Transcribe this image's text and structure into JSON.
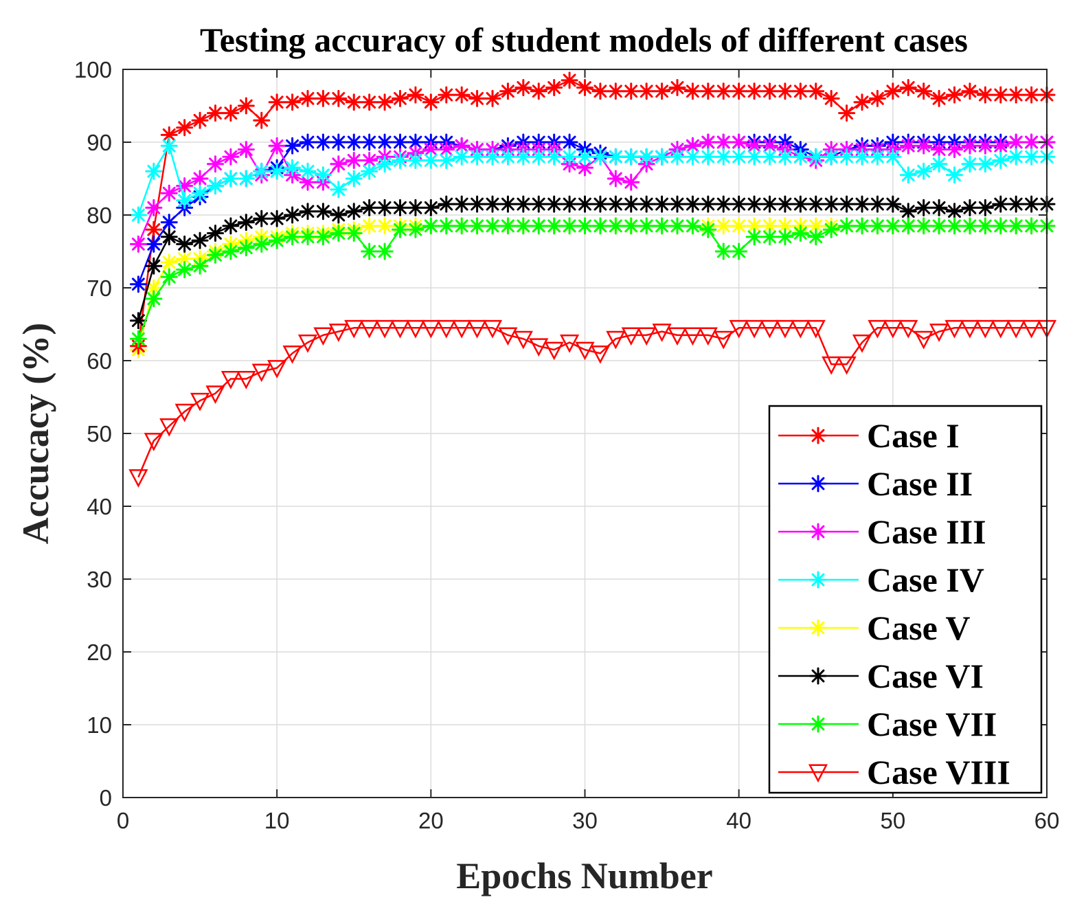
{
  "chart_data": {
    "type": "line",
    "title": "Testing accuracy of student models of different cases",
    "xlabel": "Epochs Number",
    "ylabel": "Accucacy (%)",
    "xlim": [
      0,
      60
    ],
    "ylim": [
      0,
      100
    ],
    "xticks": [
      0,
      10,
      20,
      30,
      40,
      50,
      60
    ],
    "yticks": [
      0,
      10,
      20,
      30,
      40,
      50,
      60,
      70,
      80,
      90,
      100
    ],
    "grid": true,
    "legend_position": "bottom-right",
    "x": [
      1,
      2,
      3,
      4,
      5,
      6,
      7,
      8,
      9,
      10,
      11,
      12,
      13,
      14,
      15,
      16,
      17,
      18,
      19,
      20,
      21,
      22,
      23,
      24,
      25,
      26,
      27,
      28,
      29,
      30,
      31,
      32,
      33,
      34,
      35,
      36,
      37,
      38,
      39,
      40,
      41,
      42,
      43,
      44,
      45,
      46,
      47,
      48,
      49,
      50,
      51,
      52,
      53,
      54,
      55,
      56,
      57,
      58,
      59,
      60
    ],
    "series": [
      {
        "name": "Case I",
        "color": "#ff0000",
        "marker": "star",
        "values": [
          62,
          78,
          91,
          92,
          93,
          94,
          94,
          95,
          93,
          95.5,
          95.5,
          96,
          96,
          96,
          95.5,
          95.5,
          95.5,
          96,
          96.5,
          95.5,
          96.5,
          96.5,
          96,
          96,
          97,
          97.5,
          97,
          97.5,
          98.5,
          97.5,
          97,
          97,
          97,
          97,
          97,
          97.5,
          97,
          97,
          97,
          97,
          97,
          97,
          97,
          97,
          97,
          96,
          94,
          95.5,
          96,
          97,
          97.5,
          97,
          96,
          96.5,
          97,
          96.5,
          96.5,
          96.5,
          96.5,
          96.5
        ]
      },
      {
        "name": "Case II",
        "color": "#0000ff",
        "marker": "star",
        "values": [
          70.5,
          76,
          79,
          81,
          82.5,
          84,
          85,
          85,
          86,
          86.5,
          89.5,
          90,
          90,
          90,
          90,
          90,
          90,
          90,
          90,
          90,
          90,
          89.5,
          89,
          89,
          89.5,
          90,
          90,
          90,
          90,
          89,
          88.5,
          88,
          88,
          88,
          88,
          89,
          89.5,
          90,
          90,
          90,
          90,
          90,
          90,
          89,
          88,
          88,
          89,
          89.5,
          89.5,
          90,
          90,
          90,
          90,
          90,
          90,
          90,
          90,
          90,
          90,
          90
        ]
      },
      {
        "name": "Case III",
        "color": "#ff00ff",
        "marker": "star",
        "values": [
          76,
          81,
          83,
          84,
          85,
          87,
          88,
          89,
          85.5,
          89.5,
          85.5,
          84.5,
          84.5,
          87,
          87.5,
          87.5,
          88,
          88,
          88.5,
          89,
          89,
          89.5,
          89,
          89,
          89,
          89,
          89,
          89,
          87,
          86.5,
          88,
          85,
          84.5,
          87,
          88,
          89,
          89.5,
          90,
          90,
          90,
          89.5,
          89.5,
          89,
          88,
          87.5,
          89,
          89,
          89,
          89,
          89,
          89.5,
          89.5,
          89,
          89,
          89.5,
          89.5,
          89.5,
          90,
          90,
          90
        ]
      },
      {
        "name": "Case IV",
        "color": "#00ffff",
        "marker": "star",
        "values": [
          80,
          86,
          89.5,
          82,
          83,
          84,
          85,
          85,
          86,
          86,
          86.5,
          86,
          85.5,
          83.5,
          85,
          86,
          87,
          87.5,
          87.5,
          87.5,
          87.5,
          88,
          88,
          88,
          88,
          88,
          88,
          88,
          88,
          88,
          88,
          88,
          88,
          88,
          88,
          88,
          88,
          88,
          88,
          88,
          88,
          88,
          88,
          88,
          88,
          88,
          88,
          88,
          88,
          88,
          85.5,
          86,
          87,
          85.5,
          87,
          87,
          87.5,
          88,
          88,
          88
        ]
      },
      {
        "name": "Case V",
        "color": "#ffff00",
        "marker": "star",
        "values": [
          61.5,
          70,
          73.5,
          74,
          74,
          75,
          76,
          76.5,
          77,
          77,
          77.5,
          77.5,
          77.5,
          78,
          78,
          78.5,
          78.5,
          78.5,
          78.5,
          78.5,
          78.5,
          78.5,
          78.5,
          78.5,
          78.5,
          78.5,
          78.5,
          78.5,
          78.5,
          78.5,
          78.5,
          78.5,
          78.5,
          78.5,
          78.5,
          78.5,
          78.5,
          78.5,
          78.5,
          78.5,
          78.5,
          78.5,
          78.5,
          78.5,
          78.5,
          78.5,
          78.5,
          78.5,
          78.5,
          78.5,
          78.5,
          78.5,
          78.5,
          78.5,
          78.5,
          78.5,
          78.5,
          78.5,
          78.5,
          78.5
        ]
      },
      {
        "name": "Case VI",
        "color": "#000000",
        "marker": "star",
        "values": [
          65.5,
          73,
          77,
          76,
          76.5,
          77.5,
          78.5,
          79,
          79.5,
          79.5,
          80,
          80.5,
          80.5,
          80,
          80.5,
          81,
          81,
          81,
          81,
          81,
          81.5,
          81.5,
          81.5,
          81.5,
          81.5,
          81.5,
          81.5,
          81.5,
          81.5,
          81.5,
          81.5,
          81.5,
          81.5,
          81.5,
          81.5,
          81.5,
          81.5,
          81.5,
          81.5,
          81.5,
          81.5,
          81.5,
          81.5,
          81.5,
          81.5,
          81.5,
          81.5,
          81.5,
          81.5,
          81.5,
          80.5,
          81,
          81,
          80.5,
          81,
          81,
          81.5,
          81.5,
          81.5,
          81.5
        ]
      },
      {
        "name": "Case VII",
        "color": "#00ff00",
        "marker": "star",
        "values": [
          63,
          68.5,
          71.5,
          72.5,
          73,
          74.5,
          75,
          75.5,
          76,
          76.5,
          77,
          77,
          77,
          77.5,
          77.5,
          75,
          75,
          78,
          78,
          78.5,
          78.5,
          78.5,
          78.5,
          78.5,
          78.5,
          78.5,
          78.5,
          78.5,
          78.5,
          78.5,
          78.5,
          78.5,
          78.5,
          78.5,
          78.5,
          78.5,
          78.5,
          78,
          75,
          75,
          77,
          77,
          77,
          77.5,
          77,
          78,
          78.5,
          78.5,
          78.5,
          78.5,
          78.5,
          78.5,
          78.5,
          78.5,
          78.5,
          78.5,
          78.5,
          78.5,
          78.5,
          78.5
        ]
      },
      {
        "name": "Case VIII",
        "color": "#ff0000",
        "marker": "triangle-down",
        "values": [
          44,
          49,
          51,
          53,
          54.5,
          55.5,
          57.5,
          57.5,
          58.5,
          59,
          61,
          62.5,
          63.5,
          64,
          64.5,
          64.5,
          64.5,
          64.5,
          64.5,
          64.5,
          64.5,
          64.5,
          64.5,
          64.5,
          63.5,
          63,
          62,
          61.5,
          62.5,
          61.5,
          61,
          63,
          63.5,
          63.5,
          64,
          63.5,
          63.5,
          63.5,
          63,
          64.5,
          64.5,
          64.5,
          64.5,
          64.5,
          64.5,
          59.5,
          59.5,
          62.5,
          64.5,
          64.5,
          64.5,
          63,
          64,
          64.5,
          64.5,
          64.5,
          64.5,
          64.5,
          64.5,
          64.5
        ]
      }
    ]
  }
}
